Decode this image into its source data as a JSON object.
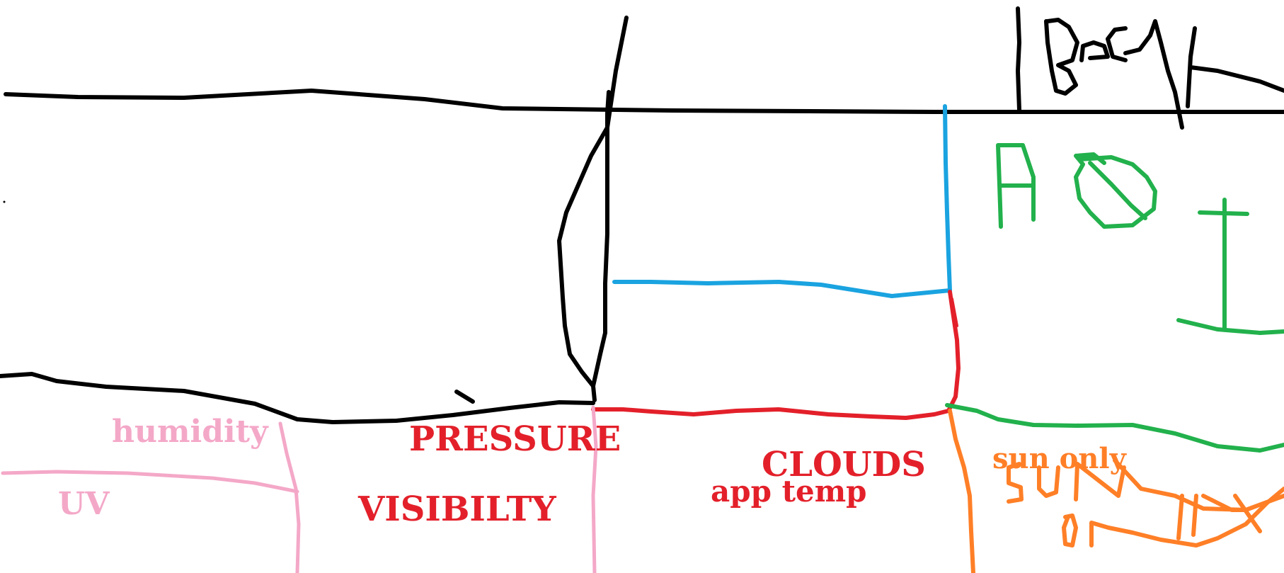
{
  "colors": {
    "ink": "#000000",
    "pink": "#f4a8c8",
    "red": "#e3202a",
    "blue": "#1aa3e0",
    "green": "#22b14c",
    "orange": "#ff7f27"
  },
  "header": {
    "back_scribble": "BaCk"
  },
  "aqi_panel": {
    "handwritten": "AQI"
  },
  "labels": {
    "humidity": "humidity",
    "uv": "UV",
    "pressure": "PRESSURE",
    "visibility": "VISIBILTY",
    "clouds": "CLOUDS",
    "app_temp": "app temp",
    "sun_only": "sun only",
    "sun_scribble": "SUN",
    "on_scribble": "ON"
  }
}
